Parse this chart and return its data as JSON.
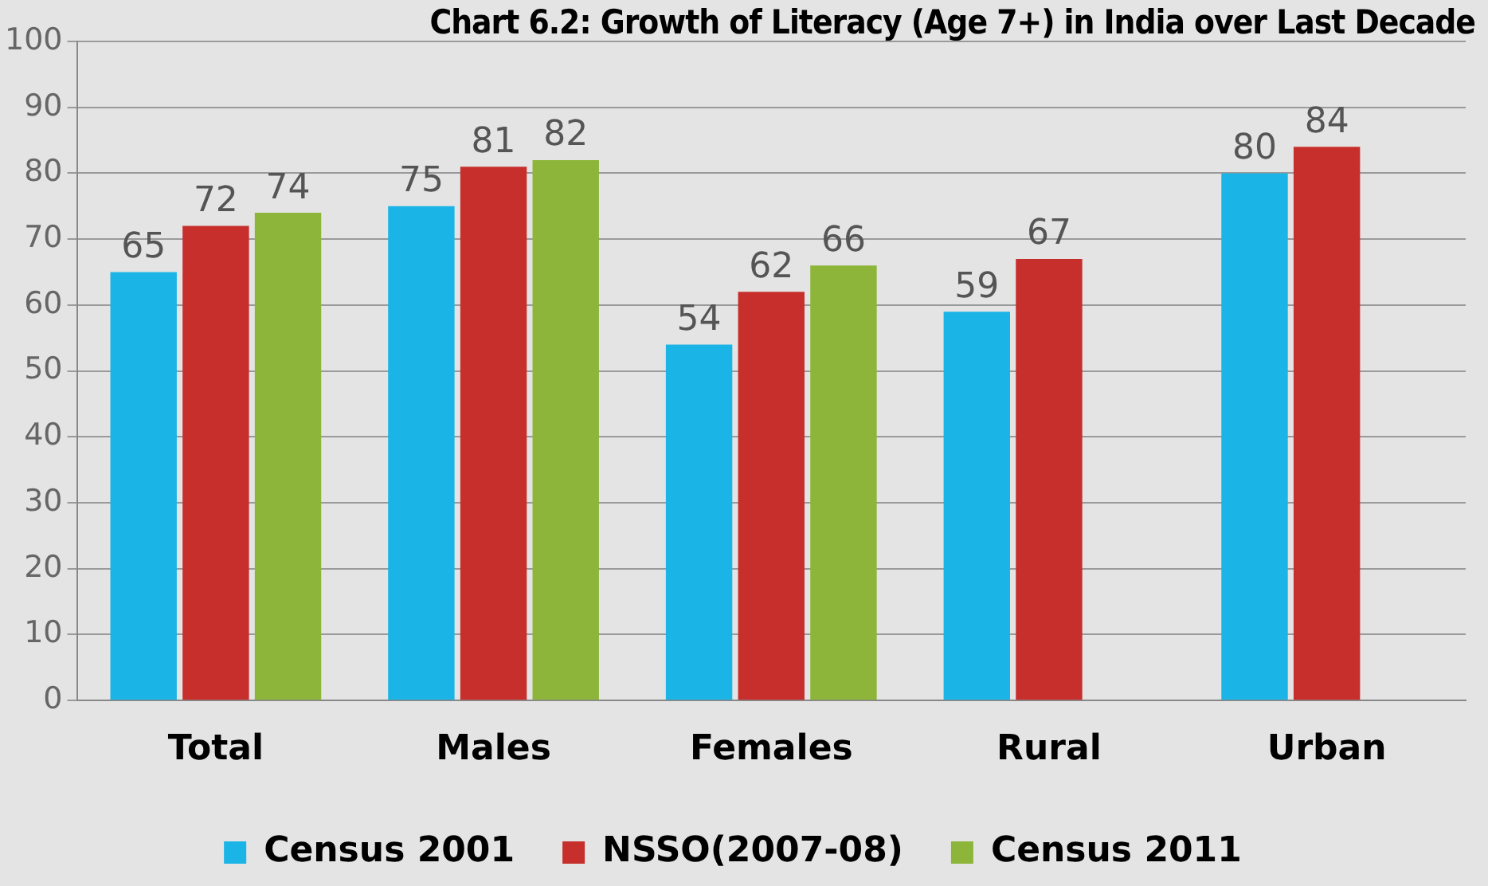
{
  "chart_data": {
    "type": "bar",
    "title": "Chart 6.2: Growth of Literacy (Age 7+) in India over Last Decade",
    "categories": [
      "Total",
      "Males",
      "Females",
      "Rural",
      "Urban"
    ],
    "series": [
      {
        "name": "Census 2001",
        "color": "#1ab4e6",
        "values": [
          65,
          75,
          54,
          59,
          80
        ]
      },
      {
        "name": "NSSO(2007-08)",
        "color": "#c62f2c",
        "values": [
          72,
          81,
          62,
          67,
          84
        ]
      },
      {
        "name": "Census 2011",
        "color": "#8db53a",
        "values": [
          74,
          82,
          66,
          null,
          null
        ]
      }
    ],
    "ylim": [
      0,
      100
    ],
    "yticks": [
      0,
      10,
      20,
      30,
      40,
      50,
      60,
      70,
      80,
      90,
      100
    ],
    "grid": "y",
    "legend": "bottom",
    "data_labels": true
  }
}
